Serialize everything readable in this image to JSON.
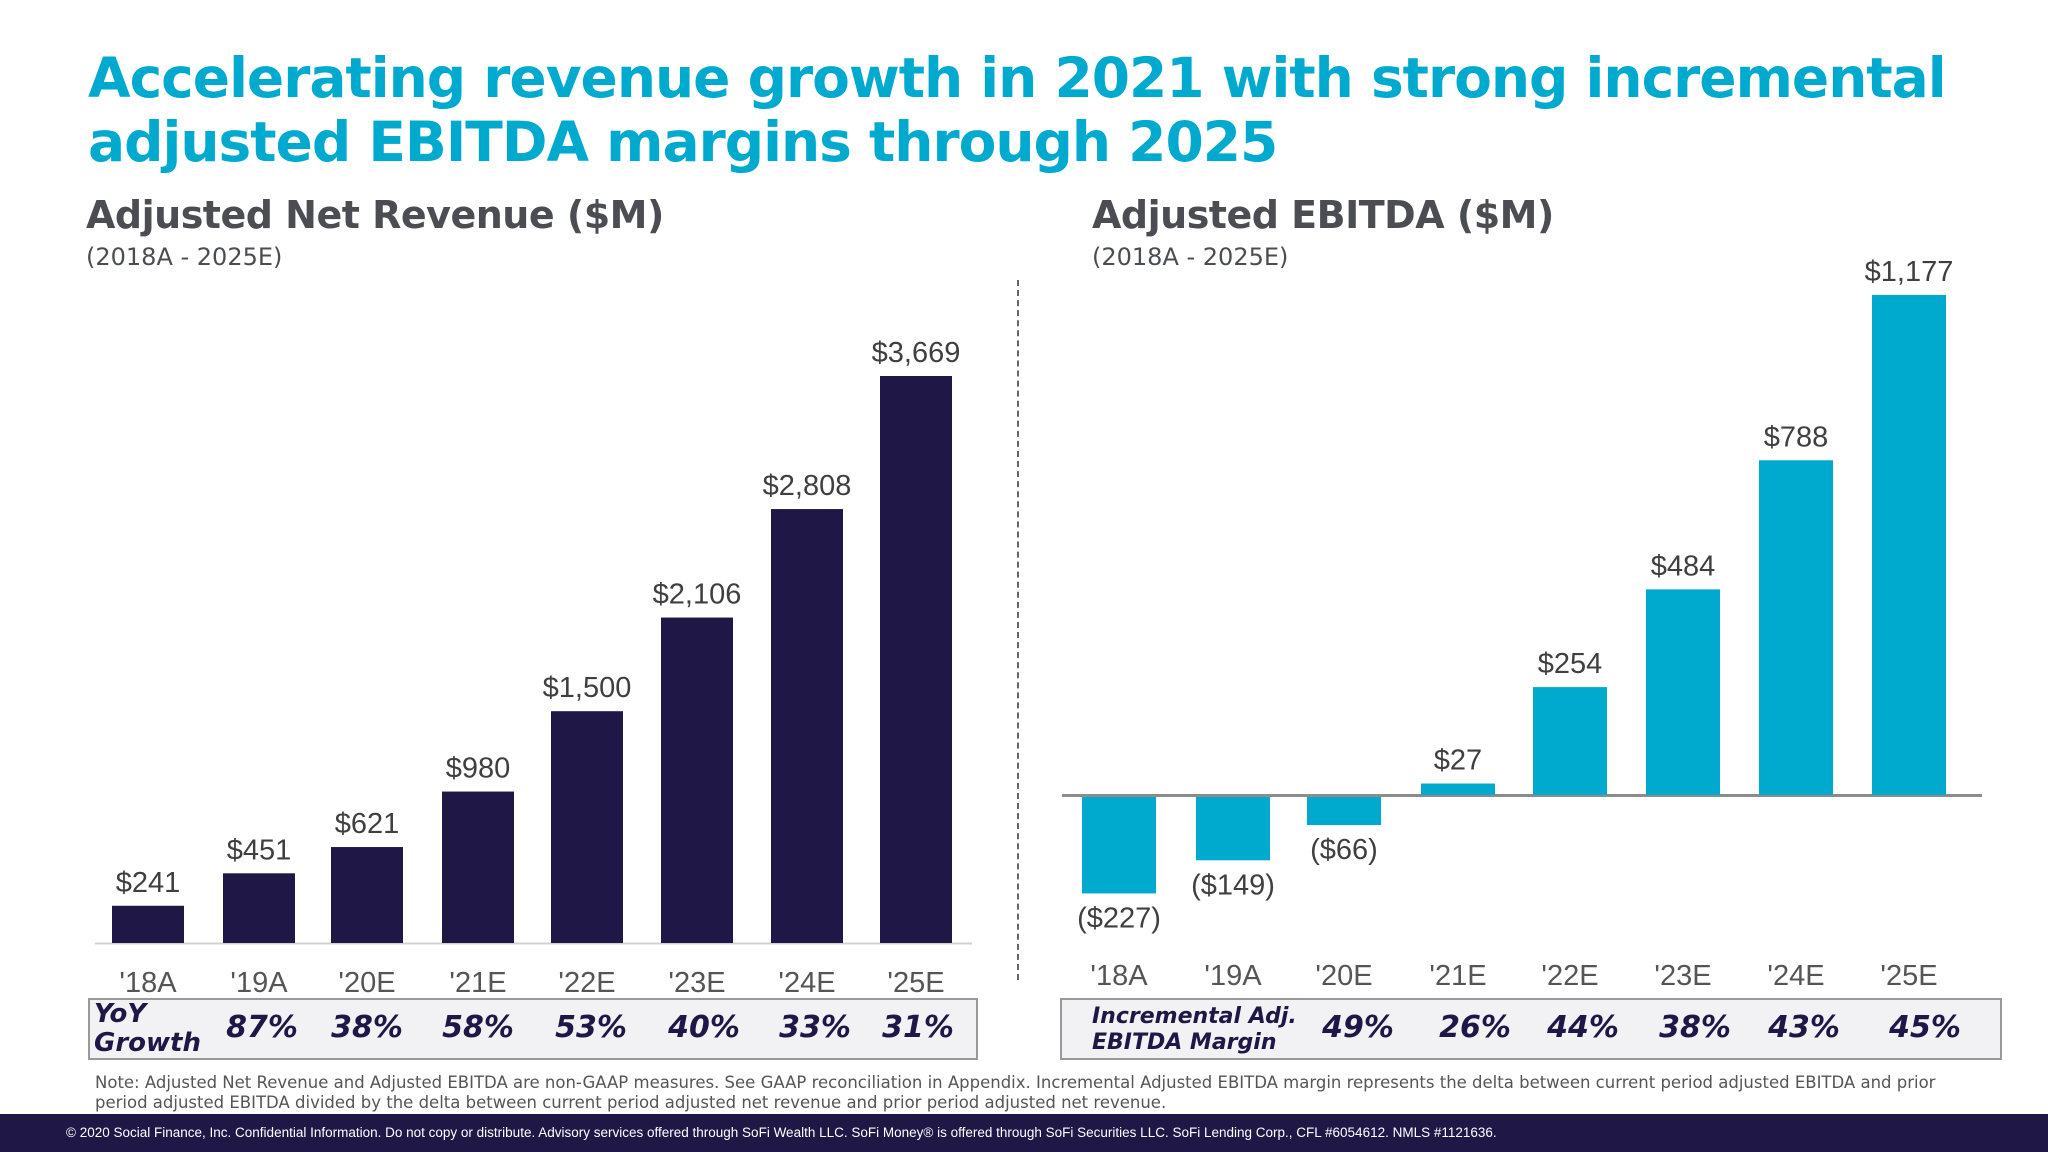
{
  "slide": {
    "title_line1": "Accelerating revenue growth in 2021 with strong incremental",
    "title_line2": "adjusted EBITDA margins through 2025",
    "note": "Note: Adjusted Net Revenue and Adjusted EBITDA are non-GAAP measures.  See GAAP reconciliation in Appendix. Incremental Adjusted EBITDA margin represents the delta between current period adjusted EBITDA and prior period adjusted EBITDA divided by the delta between current period adjusted net revenue and prior period adjusted net revenue.",
    "footer": "© 2020 Social Finance, Inc. Confidential Information. Do not copy or distribute. Advisory services offered through SoFi Wealth LLC. SoFi Money® is offered through SoFi Securities LLC. SoFi Lending Corp., CFL #6054612. NMLS #1121636.",
    "colors": {
      "accent": "#00a9ce",
      "navy": "#1f1846",
      "gray_text": "#4b4d52"
    }
  },
  "chart_data": [
    {
      "type": "bar",
      "title": "Adjusted Net Revenue ($M)",
      "subtitle": "(2018A - 2025E)",
      "categories": [
        "'18A",
        "'19A",
        "'20E",
        "'21E",
        "'22E",
        "'23E",
        "'24E",
        "'25E"
      ],
      "values": [
        241,
        451,
        621,
        980,
        1500,
        2106,
        2808,
        3669
      ],
      "data_labels": [
        "$241",
        "$451",
        "$621",
        "$980",
        "$1,500",
        "$2,106",
        "$2,808",
        "$3,669"
      ],
      "color": "#1f1846",
      "ylim": [
        0,
        3669
      ],
      "grid": false,
      "table": {
        "label_line1": "YoY",
        "label_line2": "Growth",
        "values": [
          "87%",
          "38%",
          "58%",
          "53%",
          "40%",
          "33%",
          "31%"
        ]
      }
    },
    {
      "type": "bar",
      "title": "Adjusted EBITDA ($M)",
      "subtitle": "(2018A - 2025E)",
      "categories": [
        "'18A",
        "'19A",
        "'20E",
        "'21E",
        "'22E",
        "'23E",
        "'24E",
        "'25E"
      ],
      "values": [
        -227,
        -149,
        -66,
        27,
        254,
        484,
        788,
        1177
      ],
      "data_labels": [
        "($227)",
        "($149)",
        "($66)",
        "$27",
        "$254",
        "$484",
        "$788",
        "$1,177"
      ],
      "color": "#00a9ce",
      "ylim": [
        -227,
        1177
      ],
      "grid": false,
      "table": {
        "label_line1": "Incremental Adj.",
        "label_line2": "EBITDA Margin",
        "values": [
          "49%",
          "26%",
          "44%",
          "38%",
          "43%",
          "45%"
        ]
      }
    }
  ]
}
